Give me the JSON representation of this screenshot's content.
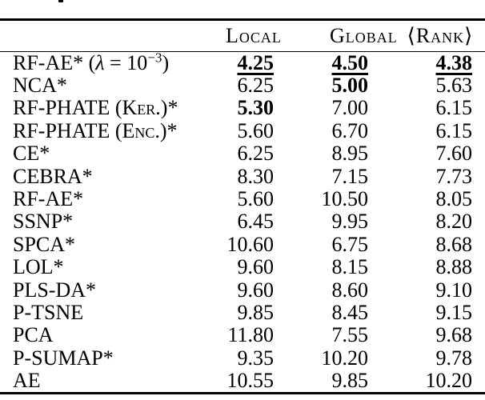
{
  "table": {
    "header": {
      "local": "Local",
      "global": "Global",
      "rank": "⟨Rank⟩"
    },
    "rows": [
      {
        "label_prefix": "RF-AE* (",
        "label_lambda": "λ",
        "label_mid": " = 10",
        "label_sup": "−3",
        "label_suffix": ")",
        "local": "4.25",
        "global": "4.50",
        "rank": "4.38"
      },
      {
        "label": "NCA*",
        "local": "6.25",
        "global": "5.00",
        "rank": "5.63"
      },
      {
        "label": "RF-PHATE (Ker.)*",
        "local": "5.30",
        "global": "7.00",
        "rank": "6.15"
      },
      {
        "label": "RF-PHATE (Enc.)*",
        "local": "5.60",
        "global": "6.70",
        "rank": "6.15"
      },
      {
        "label": "CE*",
        "local": "6.25",
        "global": "8.95",
        "rank": "7.60"
      },
      {
        "label": "CEBRA*",
        "local": "8.30",
        "global": "7.15",
        "rank": "7.73"
      },
      {
        "label": "RF-AE*",
        "local": "5.60",
        "global": "10.50",
        "rank": "8.05"
      },
      {
        "label": "SSNP*",
        "local": "6.45",
        "global": "9.95",
        "rank": "8.20"
      },
      {
        "label": "SPCA*",
        "local": "10.60",
        "global": "6.75",
        "rank": "8.68"
      },
      {
        "label": "LOL*",
        "local": "9.60",
        "global": "8.15",
        "rank": "8.88"
      },
      {
        "label": "PLS-DA*",
        "local": "9.60",
        "global": "8.60",
        "rank": "9.10"
      },
      {
        "label": "P-TSNE",
        "local": "9.85",
        "global": "8.45",
        "rank": "9.15"
      },
      {
        "label": "PCA",
        "local": "11.80",
        "global": "7.55",
        "rank": "9.68"
      },
      {
        "label": "P-SUMAP*",
        "local": "9.35",
        "global": "10.20",
        "rank": "9.78"
      },
      {
        "label": "AE",
        "local": "10.55",
        "global": "9.85",
        "rank": "10.20"
      }
    ],
    "colors": {
      "text": "#000000",
      "background": "#ffffff",
      "rule": "#000000"
    }
  }
}
